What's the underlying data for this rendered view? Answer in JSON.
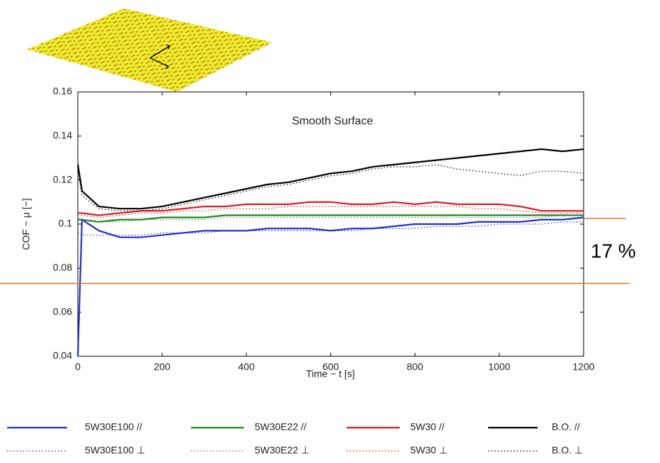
{
  "chart_data": {
    "type": "line",
    "annotation": "Smooth Surface",
    "side_label": "17 %",
    "xlabel": "Time − t [s]",
    "ylabel": "COF − μ [−]",
    "x": [
      0,
      10,
      50,
      100,
      150,
      200,
      250,
      300,
      350,
      400,
      450,
      500,
      550,
      600,
      650,
      700,
      750,
      800,
      850,
      900,
      950,
      1000,
      1050,
      1100,
      1150,
      1200
    ],
    "xlim": [
      0,
      1200
    ],
    "xticks": [
      0,
      200,
      400,
      600,
      800,
      1000,
      1200
    ],
    "ylim": [
      0.04,
      0.16
    ],
    "yticks": [
      0.04,
      0.06,
      0.08,
      0.1,
      0.12,
      0.14,
      0.16
    ],
    "series": [
      {
        "name": "5W30E100 //",
        "color": "#1f2fd6",
        "style": "solid",
        "values": [
          0.04,
          0.102,
          0.097,
          0.094,
          0.094,
          0.095,
          0.096,
          0.097,
          0.097,
          0.097,
          0.098,
          0.098,
          0.098,
          0.097,
          0.098,
          0.098,
          0.099,
          0.1,
          0.1,
          0.1,
          0.101,
          0.101,
          0.101,
          0.102,
          0.102,
          0.103
        ]
      },
      {
        "name": "5W30E22 //",
        "color": "#1a8a1a",
        "style": "solid",
        "values": [
          0.102,
          0.102,
          0.101,
          0.102,
          0.102,
          0.103,
          0.103,
          0.103,
          0.104,
          0.104,
          0.104,
          0.104,
          0.104,
          0.104,
          0.104,
          0.104,
          0.104,
          0.104,
          0.104,
          0.104,
          0.104,
          0.104,
          0.104,
          0.104,
          0.104,
          0.104
        ]
      },
      {
        "name": "5W30 //",
        "color": "#e0141a",
        "style": "solid",
        "values": [
          0.105,
          0.105,
          0.104,
          0.105,
          0.106,
          0.106,
          0.107,
          0.108,
          0.108,
          0.109,
          0.109,
          0.109,
          0.11,
          0.11,
          0.109,
          0.109,
          0.11,
          0.109,
          0.11,
          0.109,
          0.109,
          0.109,
          0.108,
          0.106,
          0.106,
          0.106
        ]
      },
      {
        "name": "B.O. //",
        "color": "#000000",
        "style": "solid",
        "values": [
          0.127,
          0.115,
          0.108,
          0.107,
          0.107,
          0.108,
          0.11,
          0.112,
          0.114,
          0.116,
          0.118,
          0.119,
          0.121,
          0.123,
          0.124,
          0.126,
          0.127,
          0.128,
          0.129,
          0.13,
          0.131,
          0.132,
          0.133,
          0.134,
          0.133,
          0.134
        ]
      },
      {
        "name": "5W30E100 ⊥",
        "color": "#1f2fd6",
        "style": "dotted",
        "values": [
          0.096,
          0.095,
          0.095,
          0.095,
          0.095,
          0.096,
          0.096,
          0.096,
          0.097,
          0.097,
          0.097,
          0.097,
          0.097,
          0.097,
          0.097,
          0.098,
          0.098,
          0.098,
          0.099,
          0.099,
          0.099,
          0.1,
          0.1,
          0.1,
          0.101,
          0.101
        ]
      },
      {
        "name": "5W30E22 ⊥",
        "color": "#777777",
        "style": "dotted",
        "values": [
          0.103,
          0.102,
          0.101,
          0.101,
          0.102,
          0.102,
          0.102,
          0.102,
          0.103,
          0.103,
          0.103,
          0.103,
          0.103,
          0.103,
          0.103,
          0.103,
          0.103,
          0.103,
          0.103,
          0.103,
          0.103,
          0.103,
          0.103,
          0.103,
          0.104,
          0.104
        ]
      },
      {
        "name": "5W30 ⊥",
        "color": "#e0141a",
        "style": "dotted",
        "values": [
          0.104,
          0.104,
          0.103,
          0.104,
          0.105,
          0.105,
          0.106,
          0.106,
          0.107,
          0.107,
          0.107,
          0.108,
          0.108,
          0.108,
          0.108,
          0.108,
          0.108,
          0.108,
          0.108,
          0.108,
          0.107,
          0.107,
          0.106,
          0.105,
          0.105,
          0.105
        ]
      },
      {
        "name": "B.O. ⊥",
        "color": "#000000",
        "style": "dotted",
        "values": [
          0.125,
          0.113,
          0.107,
          0.106,
          0.106,
          0.107,
          0.109,
          0.111,
          0.113,
          0.115,
          0.117,
          0.118,
          0.12,
          0.122,
          0.123,
          0.125,
          0.126,
          0.126,
          0.127,
          0.125,
          0.124,
          0.123,
          0.122,
          0.124,
          0.124,
          0.123
        ]
      }
    ]
  }
}
